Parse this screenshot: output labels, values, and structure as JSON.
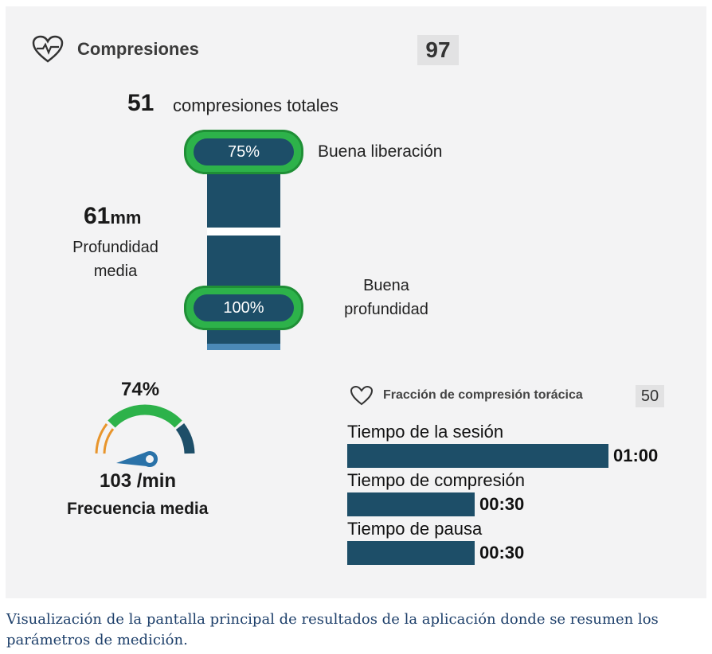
{
  "compressions": {
    "title": "Compresiones",
    "score": "97",
    "total_count": "51",
    "total_label": "compresiones totales",
    "release": {
      "percent": "75%",
      "label": "Buena liberación"
    },
    "depth": {
      "value": "61",
      "unit": "mm",
      "label_line1": "Profundidad",
      "label_line2": "media"
    },
    "good_depth": {
      "percent": "100%",
      "label_line1": "Buena",
      "label_line2": "profundidad"
    }
  },
  "rate": {
    "percent": "74%",
    "percent_value": 74,
    "value": "103 /min",
    "label": "Frecuencia media"
  },
  "fraction": {
    "title": "Fracción de compresión torácica",
    "score": "50",
    "bars": [
      {
        "label": "Tiempo de la sesión",
        "value": "01:00",
        "fraction": 1.0
      },
      {
        "label": "Tiempo de compresión",
        "value": "00:30",
        "fraction": 0.5
      },
      {
        "label": "Tiempo de pausa",
        "value": "00:30",
        "fraction": 0.5
      }
    ]
  },
  "colors": {
    "navy": "#1d4e68",
    "green": "#2db24a",
    "orange": "#e8952c",
    "caption": "#1d3f6a"
  },
  "icons": {
    "compressions": "heart-pulse-icon",
    "fraction": "heart-icon",
    "gauge_needle": "needle-icon"
  },
  "caption": "Visualización de la pantalla principal de resultados de la aplicación donde se resumen los parámetros de medición."
}
